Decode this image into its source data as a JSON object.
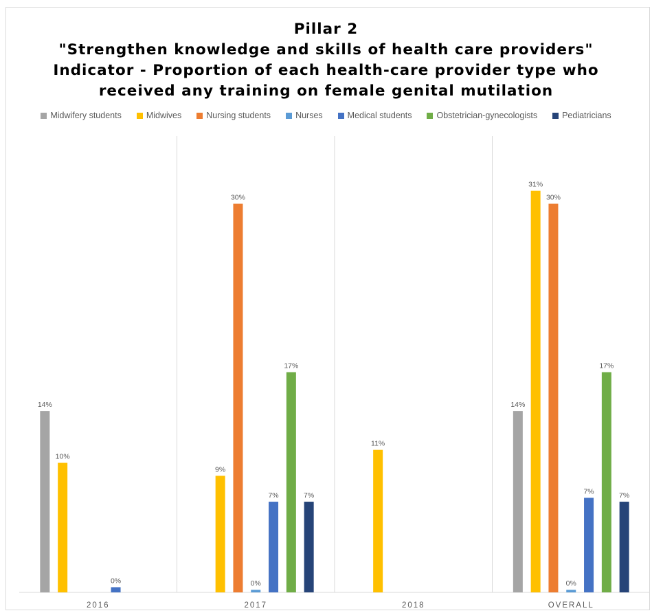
{
  "title_lines": [
    "Pillar 2",
    "\"Strengthen knowledge and skills of health care providers\"",
    "Indicator - Proportion of each health-care provider type who",
    "received any training on female genital mutilation"
  ],
  "chart_data": {
    "type": "bar",
    "title": "Pillar 2 \"Strengthen knowledge and skills of health care providers\" Indicator - Proportion of each health-care provider type who received any training on female genital mutilation",
    "categories": [
      "2016",
      "2017",
      "2018",
      "OVERALL"
    ],
    "ylim": [
      0,
      33
    ],
    "grid": "vertical separators between categories",
    "legend_position": "top",
    "series": [
      {
        "name": "Midwifery students",
        "color": "#A5A5A5",
        "values": [
          14,
          null,
          null,
          14
        ],
        "labels": [
          "14%",
          "",
          "",
          "14%"
        ]
      },
      {
        "name": "Midwives",
        "color": "#FFC000",
        "values": [
          10,
          9,
          11,
          31
        ],
        "labels": [
          "10%",
          "9%",
          "11%",
          "31%"
        ]
      },
      {
        "name": "Nursing students",
        "color": "#ED7D31",
        "values": [
          null,
          30,
          null,
          30
        ],
        "labels": [
          "",
          "30%",
          "",
          "30%"
        ]
      },
      {
        "name": "Nurses",
        "color": "#5B9BD5",
        "values": [
          null,
          0.2,
          null,
          0.2
        ],
        "labels": [
          "",
          "0%",
          "",
          "0%"
        ]
      },
      {
        "name": "Medical students",
        "color": "#4472C4",
        "values": [
          0.4,
          7,
          null,
          7.3
        ],
        "labels": [
          "0%",
          "7%",
          "",
          "7%"
        ]
      },
      {
        "name": "Obstetrician-gynecologists",
        "color": "#70AD47",
        "values": [
          null,
          17,
          null,
          17
        ],
        "labels": [
          "",
          "17%",
          "",
          "17%"
        ]
      },
      {
        "name": "Pediatricians",
        "color": "#264478",
        "values": [
          null,
          7,
          null,
          7
        ],
        "labels": [
          "",
          "7%",
          "",
          "7%"
        ]
      }
    ]
  }
}
